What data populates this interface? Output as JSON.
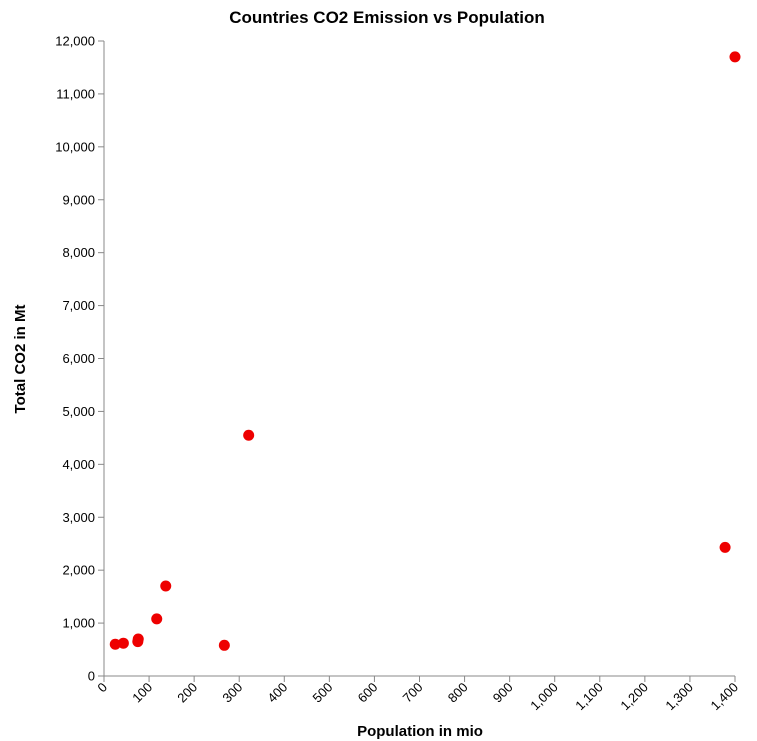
{
  "chart_data": {
    "type": "scatter",
    "title": "Countries CO2 Emission vs Population",
    "xlabel": "Population in mio",
    "ylabel": "Total CO2 in Mt",
    "xlim": [
      0,
      1400
    ],
    "ylim": [
      0,
      12000
    ],
    "x_ticks": [
      "0",
      "100",
      "200",
      "300",
      "400",
      "500",
      "600",
      "700",
      "800",
      "900",
      "1,000",
      "1,100",
      "1,200",
      "1,300",
      "1,400"
    ],
    "y_ticks": [
      "0",
      "1,000",
      "2,000",
      "3,000",
      "4,000",
      "5,000",
      "6,000",
      "7,000",
      "8,000",
      "9,000",
      "10,000",
      "11,000",
      "12,000"
    ],
    "grid": false,
    "marker_color": "#ee0000",
    "series": [
      {
        "points": [
          {
            "x": 25,
            "y": 600
          },
          {
            "x": 43,
            "y": 620
          },
          {
            "x": 75,
            "y": 650
          },
          {
            "x": 76,
            "y": 700
          },
          {
            "x": 117,
            "y": 1080
          },
          {
            "x": 137,
            "y": 1700
          },
          {
            "x": 267,
            "y": 580
          },
          {
            "x": 321,
            "y": 4550
          },
          {
            "x": 1378,
            "y": 2430
          },
          {
            "x": 1400,
            "y": 11700
          }
        ]
      }
    ]
  }
}
